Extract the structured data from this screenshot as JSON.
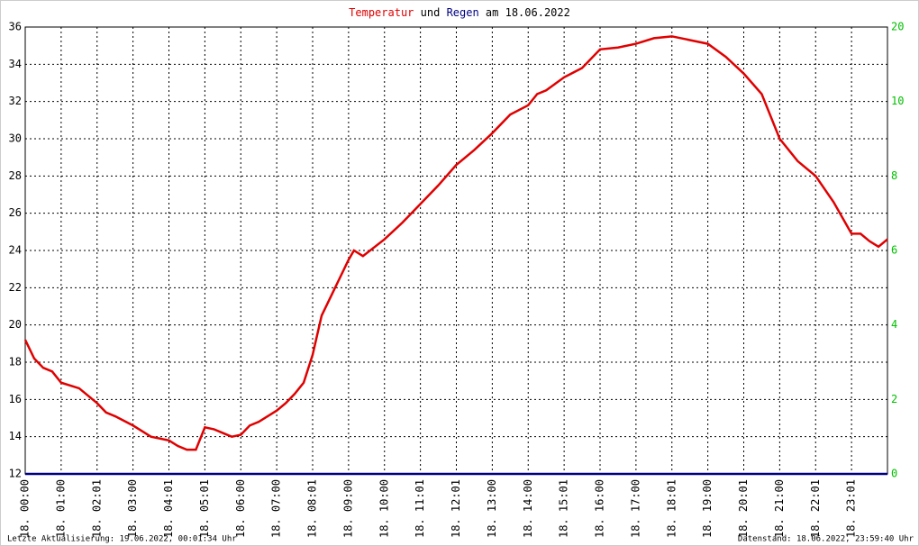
{
  "chart_data": {
    "type": "line",
    "title_joiner": "und",
    "title_date": "am 18.06.2022",
    "xlim": [
      0,
      24
    ],
    "xticks": [
      {
        "value": 0,
        "label": "18. 00:00"
      },
      {
        "value": 1,
        "label": "18. 01:00"
      },
      {
        "value": 2,
        "label": "18. 02:01"
      },
      {
        "value": 3,
        "label": "18. 03:00"
      },
      {
        "value": 4,
        "label": "18. 04:01"
      },
      {
        "value": 5,
        "label": "18. 05:01"
      },
      {
        "value": 6,
        "label": "18. 06:00"
      },
      {
        "value": 7,
        "label": "18. 07:00"
      },
      {
        "value": 8,
        "label": "18. 08:01"
      },
      {
        "value": 9,
        "label": "18. 09:00"
      },
      {
        "value": 10,
        "label": "18. 10:00"
      },
      {
        "value": 11,
        "label": "18. 11:01"
      },
      {
        "value": 12,
        "label": "18. 12:01"
      },
      {
        "value": 13,
        "label": "18. 13:00"
      },
      {
        "value": 14,
        "label": "18. 14:00"
      },
      {
        "value": 15,
        "label": "18. 15:01"
      },
      {
        "value": 16,
        "label": "18. 16:00"
      },
      {
        "value": 17,
        "label": "18. 17:00"
      },
      {
        "value": 18,
        "label": "18. 18:01"
      },
      {
        "value": 19,
        "label": "18. 19:00"
      },
      {
        "value": 20,
        "label": "18. 20:01"
      },
      {
        "value": 21,
        "label": "18. 21:00"
      },
      {
        "value": 22,
        "label": "18. 22:01"
      },
      {
        "value": 23,
        "label": "18. 23:01"
      }
    ],
    "ylim": [
      12,
      36
    ],
    "yticks": [
      12,
      14,
      16,
      18,
      20,
      22,
      24,
      26,
      28,
      30,
      32,
      34,
      36
    ],
    "y2lim": [
      0,
      12
    ],
    "y2ticks": [
      0,
      2,
      4,
      6,
      8,
      10
    ],
    "y2_top_label": "20",
    "grid": true,
    "series": [
      {
        "name": "Temperatur",
        "color": "#e00000",
        "x": [
          0,
          0.25,
          0.5,
          0.75,
          1,
          1.5,
          2,
          2.25,
          2.5,
          3,
          3.25,
          3.5,
          4,
          4.25,
          4.5,
          4.75,
          5,
          5.25,
          5.5,
          5.75,
          6,
          6.25,
          6.5,
          7,
          7.25,
          7.5,
          7.75,
          8,
          8.25,
          8.5,
          8.75,
          9,
          9.15,
          9.4,
          10,
          10.5,
          11,
          11.5,
          12,
          12.5,
          13,
          13.5,
          14,
          14.25,
          14.5,
          15,
          15.5,
          16,
          16.5,
          17,
          17.5,
          18,
          18.5,
          19,
          19.5,
          20,
          20.5,
          21,
          21.5,
          22,
          22.5,
          23,
          23.25,
          23.5,
          23.75,
          24
        ],
        "values": [
          19.2,
          18.2,
          17.7,
          17.5,
          16.9,
          16.6,
          15.8,
          15.3,
          15.1,
          14.6,
          14.3,
          14.0,
          13.8,
          13.5,
          13.3,
          13.3,
          14.5,
          14.4,
          14.2,
          14.0,
          14.1,
          14.6,
          14.8,
          15.4,
          15.8,
          16.3,
          16.9,
          18.4,
          20.5,
          21.5,
          22.5,
          23.5,
          24.0,
          23.7,
          24.6,
          25.5,
          26.5,
          27.5,
          28.6,
          29.4,
          30.3,
          31.3,
          31.8,
          32.4,
          32.6,
          33.3,
          33.8,
          34.8,
          34.9,
          35.1,
          35.4,
          35.5,
          35.3,
          35.1,
          34.4,
          33.5,
          32.4,
          30.0,
          28.8,
          28.0,
          26.6,
          24.9,
          24.9,
          24.5,
          24.2,
          24.6
        ]
      },
      {
        "name": "Regen",
        "color": "#000080",
        "axis": "y2",
        "x": [
          0,
          24
        ],
        "values": [
          0,
          0
        ]
      }
    ],
    "footer_left": "Letzte Aktualisierung: 19.06.2022, 00:01:34 Uhr",
    "footer_right": "Datenstand: 18.06.2022, 23:59:40 Uhr"
  }
}
